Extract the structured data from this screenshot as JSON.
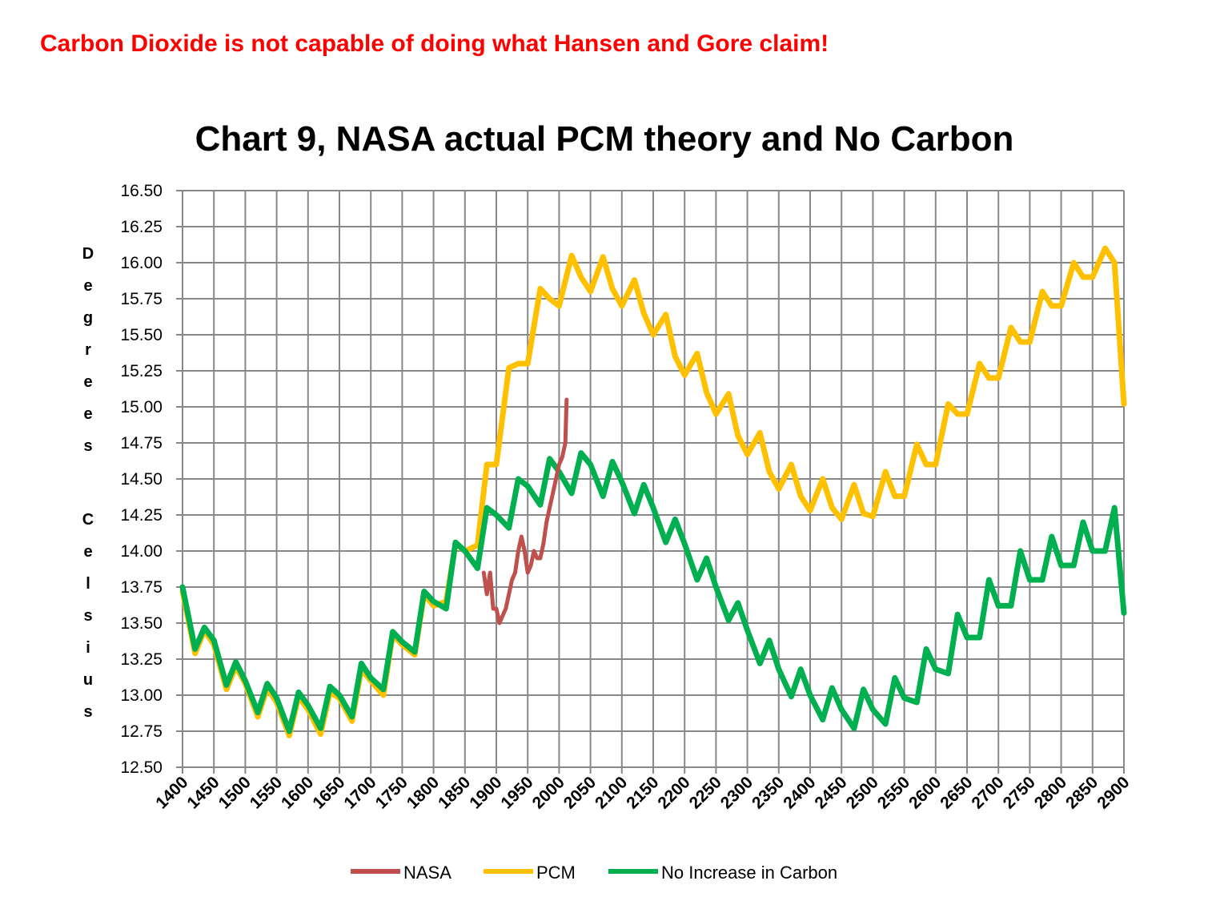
{
  "headline": "Carbon Dioxide is not capable of doing what Hansen and Gore claim!",
  "chart_data": {
    "type": "line",
    "title": "Chart 9, NASA actual PCM theory and No Carbon",
    "ylabel_top": "Degrees",
    "ylabel_bottom": "Celsius",
    "xlabel": "",
    "xlim": [
      1400,
      2900
    ],
    "ylim": [
      12.5,
      16.5
    ],
    "grid": true,
    "legend_placement": "bottom",
    "x_ticks": [
      "1400",
      "1450",
      "1500",
      "1550",
      "1600",
      "1650",
      "1700",
      "1750",
      "1800",
      "1850",
      "1900",
      "1950",
      "2000",
      "2050",
      "2100",
      "2150",
      "2200",
      "2250",
      "2300",
      "2350",
      "2400",
      "2450",
      "2500",
      "2550",
      "2600",
      "2650",
      "2700",
      "2750",
      "2800",
      "2850",
      "2900"
    ],
    "y_ticks": [
      "12.50",
      "12.75",
      "13.00",
      "13.25",
      "13.50",
      "13.75",
      "14.00",
      "14.25",
      "14.50",
      "14.75",
      "15.00",
      "15.25",
      "15.50",
      "15.75",
      "16.00",
      "16.25",
      "16.50"
    ],
    "series": [
      {
        "name": "NASA",
        "color": "#c0504d",
        "x": [
          1880,
          1885,
          1890,
          1895,
          1900,
          1905,
          1910,
          1915,
          1920,
          1925,
          1930,
          1935,
          1940,
          1945,
          1950,
          1955,
          1960,
          1965,
          1970,
          1975,
          1980,
          1985,
          1990,
          1995,
          2000,
          2005,
          2010,
          2012
        ],
        "y": [
          13.85,
          13.7,
          13.85,
          13.6,
          13.6,
          13.5,
          13.55,
          13.6,
          13.7,
          13.8,
          13.85,
          14.0,
          14.1,
          14.0,
          13.85,
          13.9,
          14.0,
          13.95,
          13.95,
          14.05,
          14.2,
          14.3,
          14.4,
          14.5,
          14.6,
          14.65,
          14.75,
          15.05
        ]
      },
      {
        "name": "PCM",
        "color": "#ffc000",
        "x": [
          1400,
          1420,
          1435,
          1450,
          1470,
          1485,
          1500,
          1520,
          1535,
          1550,
          1570,
          1585,
          1600,
          1620,
          1635,
          1650,
          1670,
          1685,
          1700,
          1720,
          1735,
          1750,
          1770,
          1785,
          1800,
          1820,
          1835,
          1850,
          1870,
          1885,
          1900,
          1920,
          1935,
          1950,
          1970,
          1985,
          2000,
          2020,
          2035,
          2050,
          2070,
          2085,
          2100,
          2120,
          2135,
          2150,
          2170,
          2185,
          2200,
          2220,
          2235,
          2250,
          2270,
          2285,
          2300,
          2320,
          2335,
          2350,
          2370,
          2385,
          2400,
          2420,
          2435,
          2450,
          2470,
          2485,
          2500,
          2520,
          2535,
          2550,
          2570,
          2585,
          2600,
          2620,
          2635,
          2650,
          2670,
          2685,
          2700,
          2720,
          2735,
          2750,
          2770,
          2785,
          2800,
          2820,
          2835,
          2850,
          2870,
          2885,
          2900
        ],
        "y": [
          13.72,
          13.29,
          13.45,
          13.35,
          13.04,
          13.2,
          13.08,
          12.85,
          13.05,
          12.95,
          12.72,
          12.99,
          12.9,
          12.73,
          13.02,
          12.98,
          12.82,
          13.18,
          13.1,
          13.0,
          13.42,
          13.35,
          13.28,
          13.7,
          13.62,
          13.65,
          14.05,
          14.0,
          14.04,
          14.6,
          14.6,
          15.27,
          15.3,
          15.3,
          15.82,
          15.75,
          15.7,
          16.05,
          15.9,
          15.8,
          16.04,
          15.82,
          15.7,
          15.88,
          15.65,
          15.5,
          15.64,
          15.35,
          15.22,
          15.37,
          15.1,
          14.95,
          15.09,
          14.8,
          14.67,
          14.82,
          14.55,
          14.43,
          14.6,
          14.38,
          14.28,
          14.5,
          14.3,
          14.22,
          14.46,
          14.26,
          14.24,
          14.55,
          14.38,
          14.38,
          14.74,
          14.6,
          14.6,
          15.02,
          14.95,
          14.95,
          15.3,
          15.2,
          15.2,
          15.55,
          15.45,
          15.45,
          15.8,
          15.7,
          15.7,
          16.0,
          15.9,
          15.9,
          16.1,
          16.0,
          15.02
        ]
      },
      {
        "name": "No Increase in Carbon",
        "color": "#00b050",
        "x": [
          1400,
          1420,
          1435,
          1450,
          1470,
          1485,
          1500,
          1520,
          1535,
          1550,
          1570,
          1585,
          1600,
          1620,
          1635,
          1650,
          1670,
          1685,
          1700,
          1720,
          1735,
          1750,
          1770,
          1785,
          1800,
          1820,
          1835,
          1850,
          1870,
          1885,
          1900,
          1920,
          1935,
          1950,
          1970,
          1985,
          2000,
          2020,
          2035,
          2050,
          2070,
          2085,
          2100,
          2120,
          2135,
          2150,
          2170,
          2185,
          2200,
          2220,
          2235,
          2250,
          2270,
          2285,
          2300,
          2320,
          2335,
          2350,
          2370,
          2385,
          2400,
          2420,
          2435,
          2450,
          2470,
          2485,
          2500,
          2520,
          2535,
          2550,
          2570,
          2585,
          2600,
          2620,
          2635,
          2650,
          2670,
          2685,
          2700,
          2720,
          2735,
          2750,
          2770,
          2785,
          2800,
          2820,
          2835,
          2850,
          2870,
          2885,
          2900
        ],
        "y": [
          13.75,
          13.32,
          13.47,
          13.38,
          13.07,
          13.23,
          13.1,
          12.88,
          13.08,
          12.98,
          12.75,
          13.02,
          12.93,
          12.77,
          13.06,
          13.0,
          12.85,
          13.22,
          13.12,
          13.04,
          13.44,
          13.37,
          13.3,
          13.72,
          13.65,
          13.6,
          14.06,
          14.0,
          13.88,
          14.3,
          14.25,
          14.16,
          14.5,
          14.45,
          14.32,
          14.64,
          14.55,
          14.4,
          14.68,
          14.6,
          14.38,
          14.62,
          14.48,
          14.26,
          14.46,
          14.3,
          14.06,
          14.22,
          14.05,
          13.8,
          13.95,
          13.75,
          13.52,
          13.64,
          13.45,
          13.22,
          13.38,
          13.18,
          12.99,
          13.18,
          13.0,
          12.83,
          13.05,
          12.9,
          12.77,
          13.04,
          12.9,
          12.8,
          13.12,
          12.98,
          12.95,
          13.32,
          13.18,
          13.15,
          13.56,
          13.4,
          13.4,
          13.8,
          13.62,
          13.62,
          14.0,
          13.8,
          13.8,
          14.1,
          13.9,
          13.9,
          14.2,
          14.0,
          14.0,
          14.3,
          13.57
        ]
      }
    ]
  }
}
